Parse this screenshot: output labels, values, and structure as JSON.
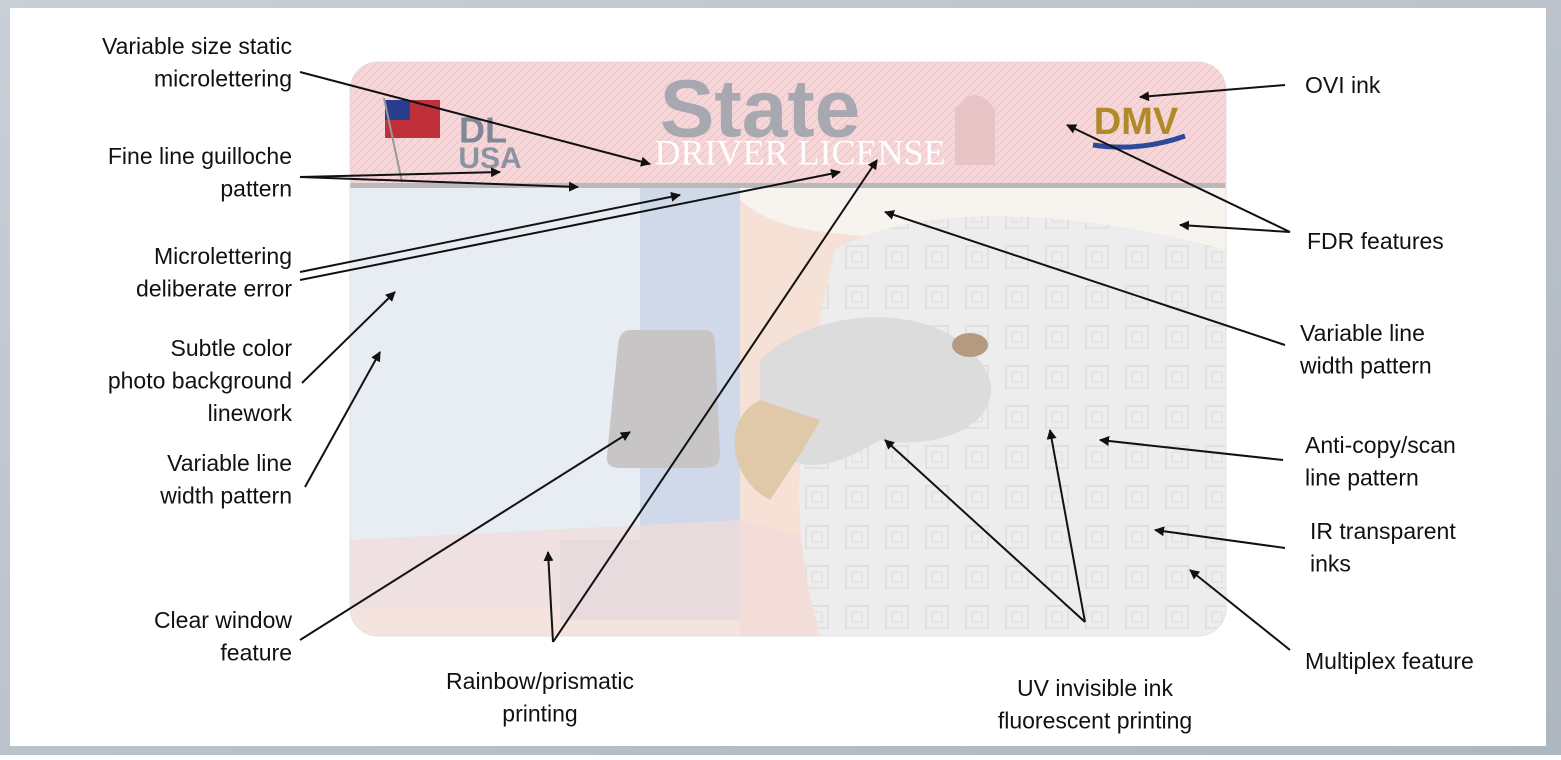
{
  "card": {
    "badge_top": "DL",
    "badge_bottom": "USA",
    "state": "State",
    "subtitle": "DRIVER LICENSE",
    "logo": "DMV"
  },
  "labels": [
    {
      "lines": [
        "Variable size static",
        "microlettering"
      ]
    },
    {
      "lines": [
        "Fine line guilloche",
        "pattern"
      ]
    },
    {
      "lines": [
        "Microlettering",
        "deliberate error"
      ]
    },
    {
      "lines": [
        "Subtle color",
        "photo background",
        "linework"
      ]
    },
    {
      "lines": [
        "Variable line",
        "width pattern"
      ]
    },
    {
      "lines": [
        "Clear window",
        "feature"
      ]
    },
    {
      "lines": [
        "Rainbow/prismatic",
        "printing"
      ]
    },
    {
      "lines": [
        "UV invisible ink",
        "fluorescent printing"
      ]
    },
    {
      "lines": [
        "OVI ink"
      ]
    },
    {
      "lines": [
        "FDR features"
      ]
    },
    {
      "lines": [
        "Variable line",
        "width pattern"
      ]
    },
    {
      "lines": [
        "Anti-copy/scan",
        "line pattern"
      ]
    },
    {
      "lines": [
        "IR transparent",
        "inks"
      ]
    },
    {
      "lines": [
        "Multiplex feature"
      ]
    }
  ]
}
